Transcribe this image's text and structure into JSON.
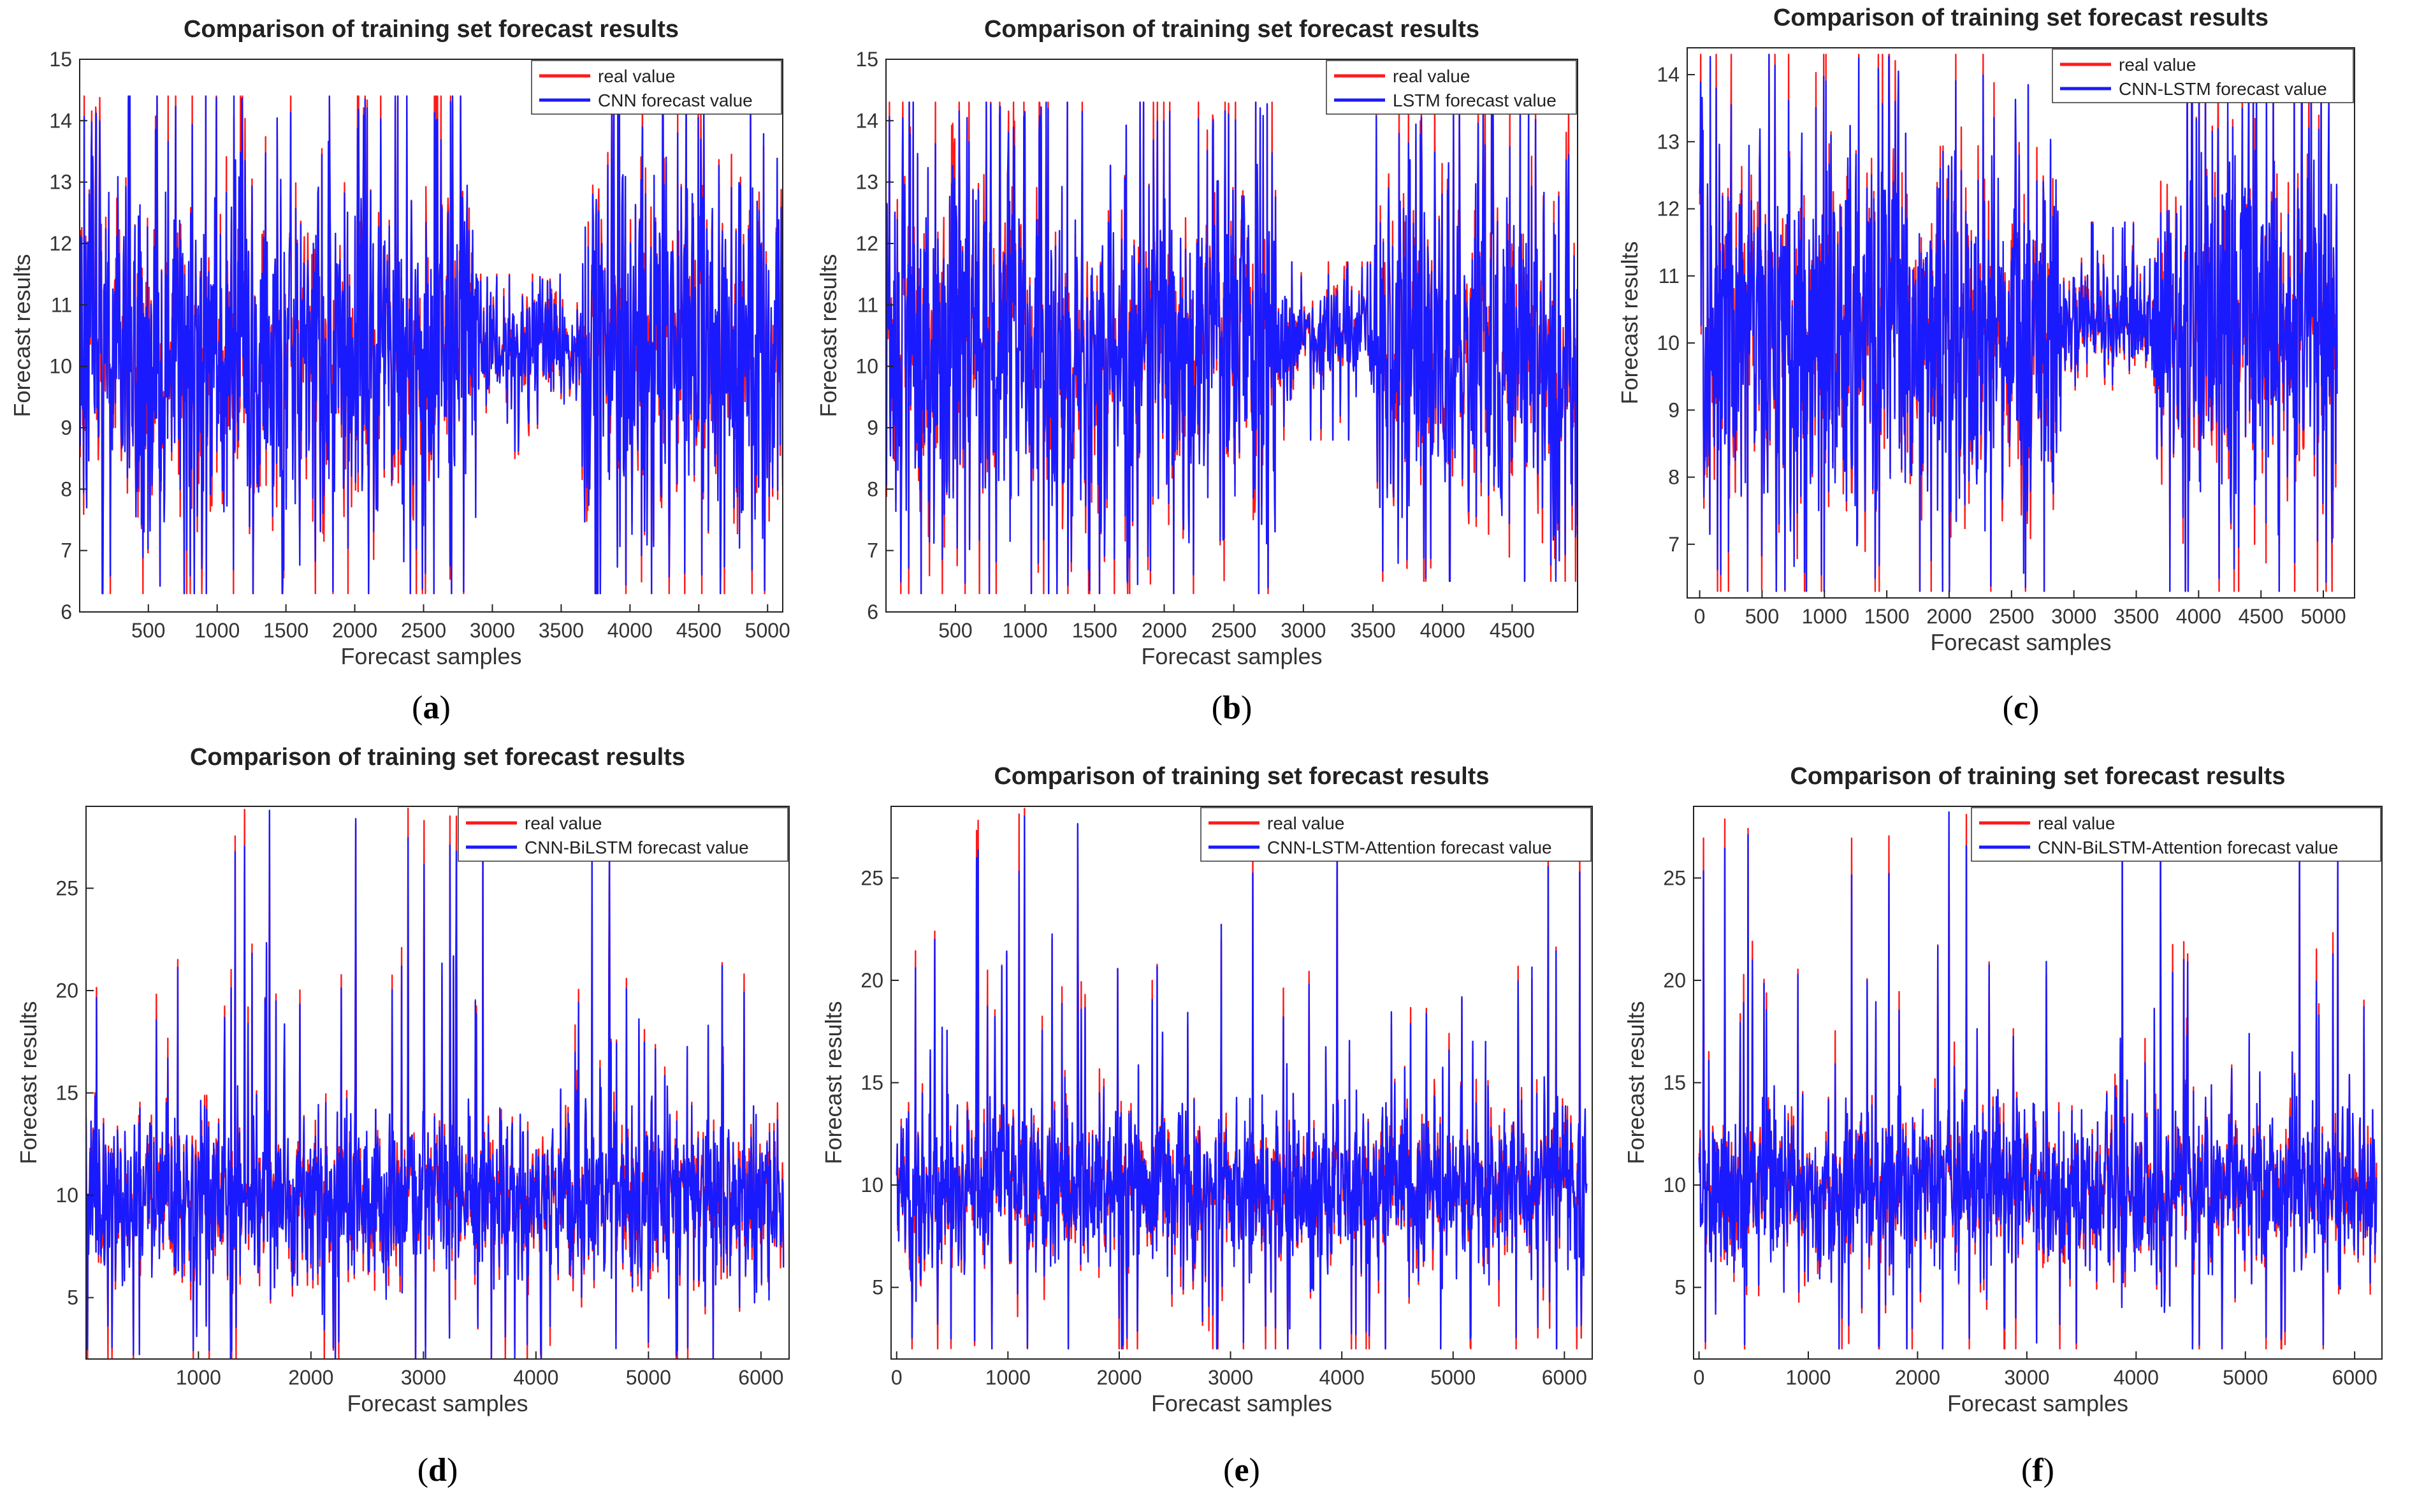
{
  "colors": {
    "real": "#ff1a1a",
    "forecast": "#1a1aff",
    "axis": "#333333",
    "frame": "#000000"
  },
  "chart_data": [
    {
      "id": "a",
      "type": "line",
      "title": "Comparison of training set forecast results",
      "xlabel": "Forecast samples",
      "ylabel": "Forecast results",
      "xlim": [
        1,
        5110
      ],
      "ylim": [
        6,
        15
      ],
      "xticks": [
        500,
        1000,
        1500,
        2000,
        2500,
        3000,
        3500,
        4000,
        4500,
        5000
      ],
      "yticks": [
        6,
        7,
        8,
        9,
        10,
        11,
        12,
        13,
        14,
        15
      ],
      "legend_position": "top-right",
      "series": [
        {
          "name": "real value",
          "color": "#ff1a1a"
        },
        {
          "name": "CNN forecast value",
          "color": "#1a1aff"
        }
      ],
      "segments": [
        {
          "from": 1,
          "to": 2880,
          "center": 10.3,
          "spread": 2.6,
          "min": 6.3,
          "max": 14.4
        },
        {
          "from": 2880,
          "to": 3650,
          "center": 10.3,
          "spread": 0.8,
          "min": 8.5,
          "max": 11.5
        },
        {
          "from": 3650,
          "to": 5110,
          "center": 10.3,
          "spread": 2.6,
          "min": 6.3,
          "max": 14.4
        }
      ],
      "caption": "a"
    },
    {
      "id": "b",
      "type": "line",
      "title": "Comparison of training set forecast results",
      "xlabel": "Forecast samples",
      "ylabel": "Forecast results",
      "xlim": [
        1,
        4970
      ],
      "ylim": [
        6,
        15
      ],
      "xticks": [
        500,
        1000,
        1500,
        2000,
        2500,
        3000,
        3500,
        4000,
        4500
      ],
      "yticks": [
        6,
        7,
        8,
        9,
        10,
        11,
        12,
        13,
        14,
        15
      ],
      "legend_position": "top-right",
      "series": [
        {
          "name": "real value",
          "color": "#ff1a1a"
        },
        {
          "name": "LSTM forecast value",
          "color": "#1a1aff"
        }
      ],
      "segments": [
        {
          "from": 1,
          "to": 2800,
          "center": 10.2,
          "spread": 2.5,
          "min": 6.3,
          "max": 14.3
        },
        {
          "from": 2800,
          "to": 3500,
          "center": 10.4,
          "spread": 0.8,
          "min": 8.8,
          "max": 11.7
        },
        {
          "from": 3500,
          "to": 4970,
          "center": 10.2,
          "spread": 2.5,
          "min": 6.5,
          "max": 14.3
        }
      ],
      "caption": "b"
    },
    {
      "id": "c",
      "type": "line",
      "title": "Comparison of training set forecast results",
      "xlabel": "Forecast samples",
      "ylabel": "Forecast results",
      "xlim": [
        -100,
        5250
      ],
      "ylim": [
        6.2,
        14.4
      ],
      "xticks": [
        0,
        500,
        1000,
        1500,
        2000,
        2500,
        3000,
        3500,
        4000,
        4500,
        5000
      ],
      "yticks": [
        7,
        8,
        9,
        10,
        11,
        12,
        13,
        14
      ],
      "legend_position": "top-right",
      "series": [
        {
          "name": "real value",
          "color": "#ff1a1a"
        },
        {
          "name": "CNN-LSTM forecast value",
          "color": "#1a1aff"
        }
      ],
      "segments": [
        {
          "from": 1,
          "to": 2900,
          "center": 10.2,
          "spread": 2.4,
          "min": 6.3,
          "max": 14.3
        },
        {
          "from": 2900,
          "to": 3650,
          "center": 10.3,
          "spread": 0.7,
          "min": 9.3,
          "max": 11.8
        },
        {
          "from": 3650,
          "to": 5110,
          "center": 10.2,
          "spread": 2.4,
          "min": 6.3,
          "max": 14.2
        }
      ],
      "caption": "c"
    },
    {
      "id": "d",
      "type": "line",
      "title": "Comparison of training set forecast results",
      "xlabel": "Forecast samples",
      "ylabel": "Forecast results",
      "xlim": [
        1,
        6250
      ],
      "ylim": [
        2,
        29
      ],
      "xticks": [
        1000,
        2000,
        3000,
        4000,
        5000,
        6000
      ],
      "yticks": [
        5,
        10,
        15,
        20,
        25
      ],
      "legend_position": "top-right",
      "series": [
        {
          "name": "real value",
          "color": "#ff1a1a"
        },
        {
          "name": "CNN-BiLSTM forecast value",
          "color": "#1a1aff"
        }
      ],
      "segments": [
        {
          "from": 1,
          "to": 6200,
          "center": 9.8,
          "spread": 3.5,
          "min": 2,
          "max": 29
        }
      ],
      "caption": "d"
    },
    {
      "id": "e",
      "type": "line",
      "title": "Comparison of training set forecast results",
      "xlabel": "Forecast samples",
      "ylabel": "Forecast results",
      "xlim": [
        -50,
        6250
      ],
      "ylim": [
        1.5,
        28.5
      ],
      "xticks": [
        0,
        1000,
        2000,
        3000,
        4000,
        5000,
        6000
      ],
      "yticks": [
        5,
        10,
        15,
        20,
        25
      ],
      "legend_position": "top-right",
      "series": [
        {
          "name": "real value",
          "color": "#ff1a1a"
        },
        {
          "name": "CNN-LSTM-Attention forecast value",
          "color": "#1a1aff"
        }
      ],
      "segments": [
        {
          "from": 1,
          "to": 6200,
          "center": 9.8,
          "spread": 3.5,
          "min": 2,
          "max": 28.5
        }
      ],
      "caption": "e"
    },
    {
      "id": "f",
      "type": "line",
      "title": "Comparison of training set forecast results",
      "xlabel": "Forecast samples",
      "ylabel": "Forecast results",
      "xlim": [
        -50,
        6250
      ],
      "ylim": [
        1.5,
        28.5
      ],
      "xticks": [
        0,
        1000,
        2000,
        3000,
        4000,
        5000,
        6000
      ],
      "yticks": [
        5,
        10,
        15,
        20,
        25
      ],
      "legend_position": "top-right",
      "series": [
        {
          "name": "real value",
          "color": "#ff1a1a"
        },
        {
          "name": "CNN-BiLSTM-Attention forecast value",
          "color": "#1a1aff"
        }
      ],
      "segments": [
        {
          "from": 1,
          "to": 6200,
          "center": 9.8,
          "spread": 3.5,
          "min": 2,
          "max": 28.5
        }
      ],
      "caption": "f"
    }
  ]
}
